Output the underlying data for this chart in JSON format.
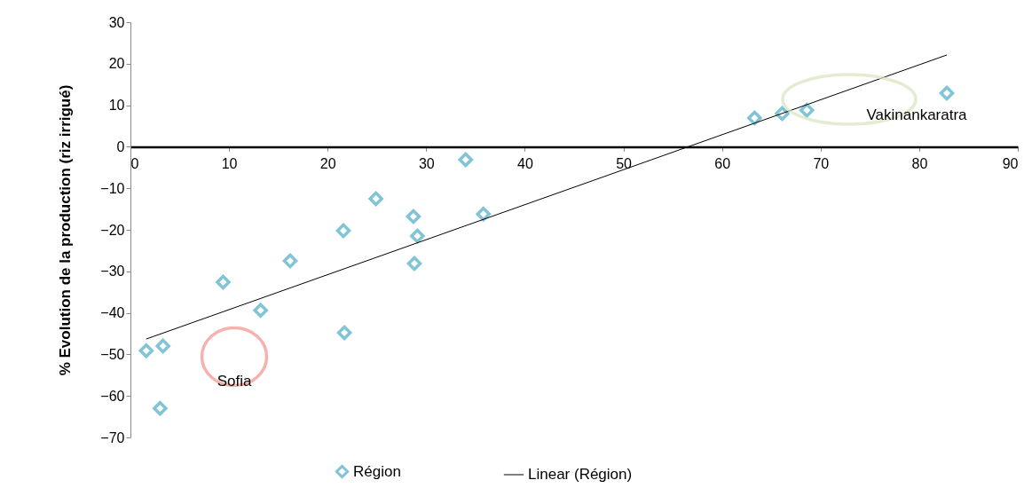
{
  "chart_data": {
    "type": "scatter",
    "ylabel": "% Evolution de la production (riz irrigué)",
    "xlim": [
      0,
      90
    ],
    "xticks": [
      0,
      10,
      20,
      30,
      40,
      50,
      60,
      70,
      80,
      90
    ],
    "ylim": [
      -70,
      30
    ],
    "yticks": [
      -70,
      -60,
      -50,
      -40,
      -30,
      -20,
      -10,
      0,
      10,
      20,
      30
    ],
    "legend": "bottom",
    "series": [
      {
        "name": "Région",
        "marker": "diamond",
        "color": "#4bacc6",
        "x": [
          1.6,
          3.3,
          3.0,
          9.4,
          13.2,
          16.2,
          21.6,
          21.7,
          24.9,
          28.7,
          29.1,
          28.8,
          34.0,
          35.8,
          63.3,
          66.1,
          68.6,
          82.8
        ],
        "values": [
          -49.1,
          -48.0,
          -63.0,
          -32.6,
          -39.4,
          -27.5,
          -20.2,
          -44.8,
          -12.5,
          -16.8,
          -21.5,
          -28.1,
          -3.1,
          -16.2,
          6.9,
          8.0,
          8.8,
          12.9
        ]
      },
      {
        "name": "Linear (Région)",
        "type": "line",
        "color": "#000000",
        "x": [
          1.6,
          82.8
        ],
        "values": [
          -46.3,
          22.1
        ]
      }
    ],
    "annotations": [
      "Sofia",
      "Vakinankaratra"
    ]
  }
}
